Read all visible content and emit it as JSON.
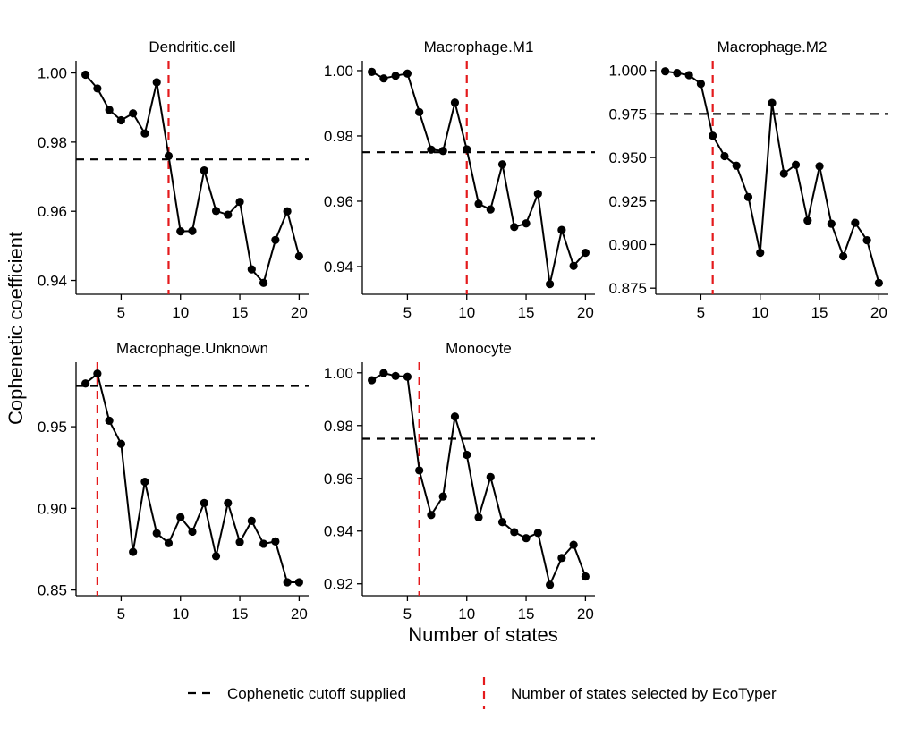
{
  "figure": {
    "xlabel": "Number of states",
    "ylabel": "Cophenetic coefficient"
  },
  "legend": {
    "cutoff_label": "Cophenetic cutoff supplied",
    "selected_label": "Number of states selected by EcoTyper",
    "cutoff_color": "#000000",
    "selected_color": "#e41a1c"
  },
  "chart_data": [
    {
      "type": "line",
      "title": "Dendritic.cell",
      "x": [
        2,
        3,
        4,
        5,
        6,
        7,
        8,
        9,
        10,
        11,
        12,
        13,
        14,
        15,
        16,
        17,
        18,
        19,
        20
      ],
      "y": [
        0.9995,
        0.9955,
        0.9893,
        0.9863,
        0.9883,
        0.9825,
        0.9973,
        0.976,
        0.9542,
        0.9543,
        0.9718,
        0.9601,
        0.959,
        0.9627,
        0.9432,
        0.9393,
        0.9517,
        0.96,
        0.947
      ],
      "cutoff": 0.975,
      "selected_states": 9,
      "xlim": [
        1.2,
        20.8
      ],
      "ylim": [
        0.936,
        1.0035
      ],
      "xticks": [
        5,
        10,
        15,
        20
      ],
      "yticks": [
        0.94,
        0.96,
        0.98,
        1.0
      ],
      "ytick_labels": [
        "0.94",
        "0.96",
        "0.98",
        "1.00"
      ]
    },
    {
      "type": "line",
      "title": "Macrophage.M1",
      "x": [
        2,
        3,
        4,
        5,
        6,
        7,
        8,
        9,
        10,
        11,
        12,
        13,
        14,
        15,
        16,
        17,
        18,
        19,
        20
      ],
      "y": [
        0.9996,
        0.9976,
        0.9984,
        0.9991,
        0.9873,
        0.9758,
        0.9754,
        0.9902,
        0.9759,
        0.9592,
        0.9575,
        0.9713,
        0.9521,
        0.9532,
        0.9623,
        0.9346,
        0.9512,
        0.9402,
        0.9442
      ],
      "cutoff": 0.975,
      "selected_states": 10,
      "xlim": [
        1.2,
        20.8
      ],
      "ylim": [
        0.9315,
        1.003
      ],
      "xticks": [
        5,
        10,
        15,
        20
      ],
      "yticks": [
        0.94,
        0.96,
        0.98,
        1.0
      ],
      "ytick_labels": [
        "0.94",
        "0.96",
        "0.98",
        "1.00"
      ]
    },
    {
      "type": "line",
      "title": "Macrophage.M2",
      "x": [
        2,
        3,
        4,
        5,
        6,
        7,
        8,
        9,
        10,
        11,
        12,
        13,
        14,
        15,
        16,
        17,
        18,
        19,
        20
      ],
      "y": [
        0.9995,
        0.9985,
        0.9973,
        0.9923,
        0.9625,
        0.9508,
        0.9453,
        0.9273,
        0.8953,
        0.9813,
        0.9408,
        0.9458,
        0.9138,
        0.945,
        0.912,
        0.8933,
        0.9125,
        0.9025,
        0.878
      ],
      "cutoff": 0.975,
      "selected_states": 6,
      "xlim": [
        1.2,
        20.8
      ],
      "ylim": [
        0.8715,
        1.0055
      ],
      "xticks": [
        5,
        10,
        15,
        20
      ],
      "yticks": [
        0.875,
        0.9,
        0.925,
        0.95,
        0.975,
        1.0
      ],
      "ytick_labels": [
        "0.875",
        "0.900",
        "0.925",
        "0.950",
        "0.975",
        "1.000"
      ]
    },
    {
      "type": "line",
      "title": "Macrophage.Unknown",
      "x": [
        2,
        3,
        4,
        5,
        6,
        7,
        8,
        9,
        10,
        11,
        12,
        13,
        14,
        15,
        16,
        17,
        18,
        19,
        20
      ],
      "y": [
        0.9765,
        0.9825,
        0.9537,
        0.9395,
        0.8733,
        0.9163,
        0.8847,
        0.8787,
        0.8945,
        0.8857,
        0.9033,
        0.8707,
        0.9033,
        0.8793,
        0.8923,
        0.8783,
        0.8797,
        0.8547,
        0.8547
      ],
      "cutoff": 0.975,
      "selected_states": 3,
      "xlim": [
        1.2,
        20.8
      ],
      "ylim": [
        0.8465,
        0.9895
      ],
      "xticks": [
        5,
        10,
        15,
        20
      ],
      "yticks": [
        0.85,
        0.9,
        0.95
      ],
      "ytick_labels": [
        "0.85",
        "0.90",
        "0.95"
      ]
    },
    {
      "type": "line",
      "title": "Monocyte",
      "x": [
        2,
        3,
        4,
        5,
        6,
        7,
        8,
        9,
        10,
        11,
        12,
        13,
        14,
        15,
        16,
        17,
        18,
        19,
        20
      ],
      "y": [
        0.9972,
        0.9999,
        0.9988,
        0.9985,
        0.963,
        0.9461,
        0.9531,
        0.9834,
        0.9689,
        0.9452,
        0.9605,
        0.9434,
        0.9396,
        0.9373,
        0.9393,
        0.9196,
        0.9298,
        0.9348,
        0.9228
      ],
      "cutoff": 0.975,
      "selected_states": 6,
      "xlim": [
        1.2,
        20.8
      ],
      "ylim": [
        0.9155,
        1.004
      ],
      "xticks": [
        5,
        10,
        15,
        20
      ],
      "yticks": [
        0.92,
        0.94,
        0.96,
        0.98,
        1.0
      ],
      "ytick_labels": [
        "0.92",
        "0.94",
        "0.96",
        "0.98",
        "1.00"
      ]
    }
  ]
}
